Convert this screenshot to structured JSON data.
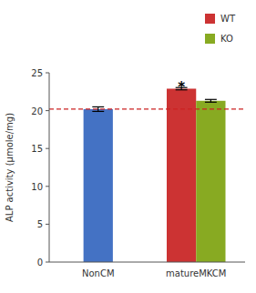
{
  "chart_data": {
    "type": "bar",
    "categories": [
      "NonCM",
      "matureMKCM"
    ],
    "series": [
      {
        "color": "#4472C4",
        "values": [
          20.2,
          null
        ],
        "errors": [
          0.3,
          null
        ]
      },
      {
        "name": "WT",
        "color": "#CC3333",
        "values": [
          null,
          22.9
        ],
        "errors": [
          null,
          0.15
        ]
      },
      {
        "name": "KO",
        "color": "#88AA22",
        "values": [
          null,
          21.3
        ],
        "errors": [
          null,
          0.18
        ]
      }
    ],
    "ylabel": "ALP activity (μmole/mg)",
    "ylim": [
      0,
      25
    ],
    "yticks": [
      0,
      5,
      10,
      15,
      20,
      25
    ],
    "reference_line": {
      "y": 20.2,
      "color": "#CC2222",
      "line_style": "dashed"
    },
    "annotations": [
      {
        "text": "*",
        "x": "matureMKCM",
        "series": "WT",
        "y": 23.2
      }
    ],
    "legend": "upper right",
    "grid": false
  }
}
